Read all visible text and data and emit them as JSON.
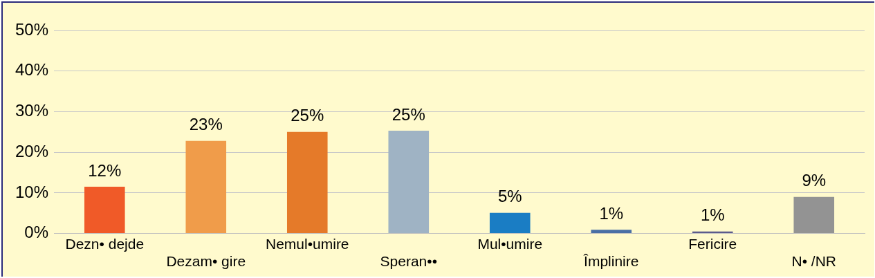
{
  "chart_data": {
    "type": "bar",
    "categories": [
      "Dezn• dejde",
      "Dezam• gire",
      "Nemul•umire",
      "Speran••",
      "Mul•umire",
      "Împlinire",
      "Fericire",
      "N• /NR"
    ],
    "values": [
      11.5,
      22.8,
      25,
      25.3,
      5.1,
      0.9,
      0.5,
      9
    ],
    "value_labels": [
      "12%",
      "23%",
      "25%",
      "25%",
      "5%",
      "1%",
      "1%",
      "9%"
    ],
    "colors": [
      "#f05a28",
      "#f09c4a",
      "#e57a29",
      "#9fb3c4",
      "#1a7dc4",
      "#4a6fa5",
      "#5b5b8c",
      "#939393"
    ],
    "ylim": [
      0,
      50
    ],
    "yticks": [
      {
        "value": 0,
        "label": "0%"
      },
      {
        "value": 10,
        "label": "10%"
      },
      {
        "value": 20,
        "label": "20%"
      },
      {
        "value": 30,
        "label": "30%"
      },
      {
        "value": 40,
        "label": "40%"
      },
      {
        "value": 50,
        "label": "50%"
      }
    ],
    "grid": "y",
    "legend": false
  }
}
